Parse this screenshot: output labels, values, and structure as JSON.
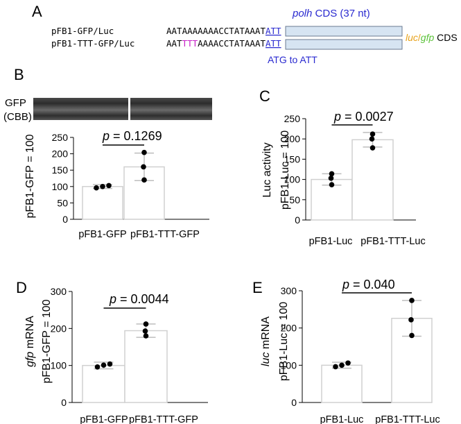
{
  "panel_a": {
    "label": "A",
    "constructs": [
      {
        "name": "pFB1-GFP/Luc",
        "seq_parts": [
          {
            "text": "AATAAAAAAACCTATAAAT",
            "color": "#000000"
          },
          {
            "text": "ATT",
            "color": "#2a2ad0"
          }
        ]
      },
      {
        "name": "pFB1-TTT-GFP/Luc",
        "seq_parts": [
          {
            "text": "AAT",
            "color": "#000000"
          },
          {
            "text": "TTT",
            "color": "#c71fc7"
          },
          {
            "text": "AAAACCTATAAAT",
            "color": "#000000"
          },
          {
            "text": "ATT",
            "color": "#2a2ad0"
          }
        ]
      }
    ],
    "cds_label_italic": "polh",
    "cds_label_rest": " CDS (37 nt)",
    "reporter_luc": "luc",
    "reporter_slash": "/",
    "reporter_gfp": "gfp",
    "reporter_cds": " CDS",
    "mutation_note": "ATG to ATT",
    "colors": {
      "blue": "#2a2ad0",
      "luc": "#e8a21a",
      "gfp": "#5cc23a",
      "box_fill": "#d6e4f2",
      "box_stroke": "#6a7a90",
      "magenta": "#c71fc7"
    }
  },
  "gel": {
    "label_top": "GFP",
    "label_bottom": "(CBB)"
  },
  "chart_data": [
    {
      "id": "B",
      "panel_label": "B",
      "type": "bar",
      "categories": [
        "pFB1-GFP",
        "pFB1-TTT-GFP"
      ],
      "values": [
        100,
        160
      ],
      "sd": [
        6,
        42
      ],
      "points": [
        [
          96,
          100,
          103
        ],
        [
          120,
          160,
          204
        ]
      ],
      "ylabel_parts": [
        "pFB1-GFP = 100"
      ],
      "yticks": [
        0,
        50,
        100,
        150,
        200,
        250
      ],
      "ylim": [
        0,
        250
      ],
      "p_label": "p",
      "p_value": " = 0.1269"
    },
    {
      "id": "C",
      "panel_label": "C",
      "type": "bar",
      "categories": [
        "pFB1-Luc",
        "pFB1-TTT-Luc"
      ],
      "values": [
        100,
        198
      ],
      "sd": [
        14,
        18
      ],
      "points": [
        [
          87,
          103,
          114
        ],
        [
          178,
          200,
          212
        ]
      ],
      "ylabel_parts": [
        "Luc activity",
        "pFB1-Luc = 100"
      ],
      "yticks": [
        0,
        50,
        100,
        150,
        200,
        250
      ],
      "ylim": [
        0,
        250
      ],
      "p_label": "p",
      "p_value": " = 0.0027"
    },
    {
      "id": "D",
      "panel_label": "D",
      "type": "bar",
      "categories": [
        "pFB1-GFP",
        "pFB1-TTT-GFP"
      ],
      "values": [
        100,
        194
      ],
      "sd": [
        9,
        18
      ],
      "points": [
        [
          96,
          101,
          104
        ],
        [
          180,
          193,
          212
        ]
      ],
      "ylabel_italic": "gfp",
      "ylabel_parts": [
        " mRNA",
        "pFB1-GFP = 100"
      ],
      "yticks": [
        0,
        100,
        200,
        300
      ],
      "ylim": [
        0,
        300
      ],
      "p_label": "p",
      "p_value": " = 0.0044"
    },
    {
      "id": "E",
      "panel_label": "E",
      "type": "bar",
      "categories": [
        "pFB1-Luc",
        "pFB1-TTT-Luc"
      ],
      "values": [
        100,
        226
      ],
      "sd": [
        8,
        48
      ],
      "points": [
        [
          96,
          100,
          106
        ],
        [
          180,
          222,
          274
        ]
      ],
      "ylabel_italic": "luc",
      "ylabel_parts": [
        " mRNA",
        "pFB1-Luc = 100"
      ],
      "yticks": [
        0,
        100,
        200,
        300
      ],
      "ylim": [
        0,
        300
      ],
      "p_label": "p",
      "p_value": " = 0.040"
    }
  ]
}
